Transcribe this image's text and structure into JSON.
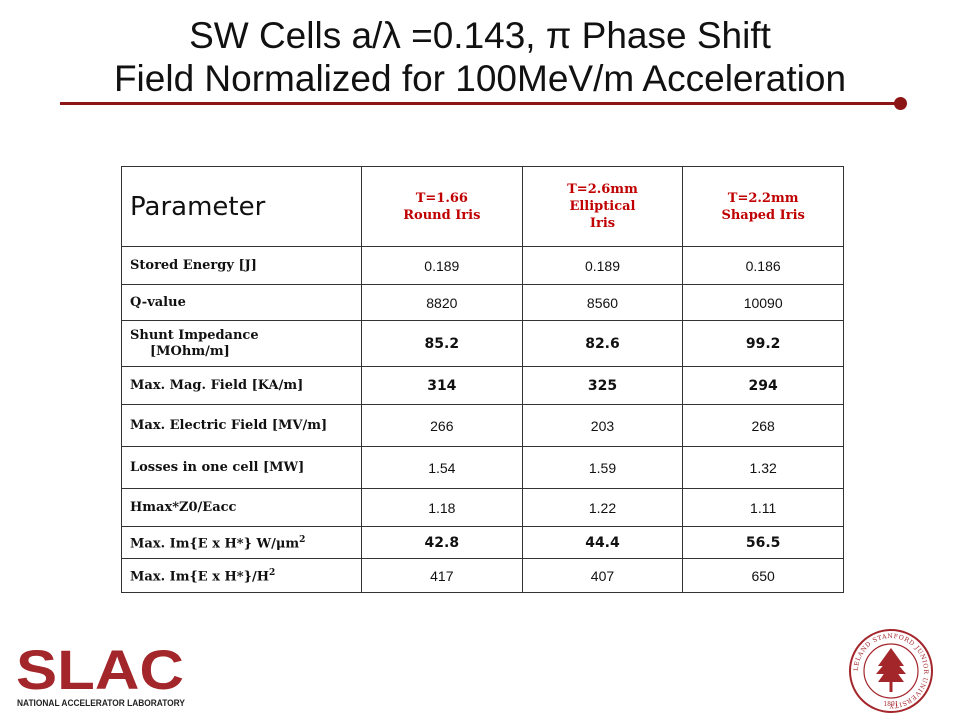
{
  "title": {
    "line1": "SW Cells a/λ =0.143, π Phase Shift",
    "line2": "Field Normalized for 100MeV/m Acceleration"
  },
  "table": {
    "header": {
      "parameter": "Parameter",
      "options": [
        {
          "line1": "T=1.66",
          "line2": "Round Iris"
        },
        {
          "line1": "T=2.6mm",
          "line2": "Elliptical",
          "line3": "Iris"
        },
        {
          "line1": "T=2.2mm",
          "line2": "Shaped Iris"
        }
      ]
    },
    "rows": [
      {
        "label": "Stored Energy [J]",
        "values": [
          "0.189",
          "0.189",
          "0.186"
        ]
      },
      {
        "label": "Q-value",
        "values": [
          "8820",
          "8560",
          "10090"
        ]
      },
      {
        "label_line1": "Shunt Impedance",
        "label_line2": "[MOhm/m]",
        "values": [
          "85.2",
          "82.6",
          "99.2"
        ]
      },
      {
        "label": "Max. Mag. Field [KA/m]",
        "values": [
          "314",
          "325",
          "294"
        ]
      },
      {
        "label": "Max. Electric Field [MV/m]",
        "values": [
          "266",
          "203",
          "268"
        ]
      },
      {
        "label": "Losses in one cell [MW]",
        "values": [
          "1.54",
          "1.59",
          "1.32"
        ]
      },
      {
        "label": "Hmax*Z0/Eacc",
        "values": [
          "1.18",
          "1.22",
          "1.11"
        ]
      },
      {
        "label": "Max. Im{E x H*} W/μm",
        "label_sup": "2",
        "values": [
          "42.8",
          "44.4",
          "56.5"
        ]
      },
      {
        "label": "Max. Im{E x H*}/H",
        "label_sup": "2",
        "values": [
          "417",
          "407",
          "650"
        ]
      }
    ]
  },
  "footer": {
    "logo_text": "SLAC",
    "logo_subtitle": "NATIONAL ACCELERATOR LABORATORY",
    "seal_text": "LELAND STANFORD JUNIOR UNIVERSITY",
    "seal_year": "1891"
  },
  "colors": {
    "accent": "#8c1515",
    "header_text": "#c00000",
    "logo_red": "#a3262b"
  }
}
